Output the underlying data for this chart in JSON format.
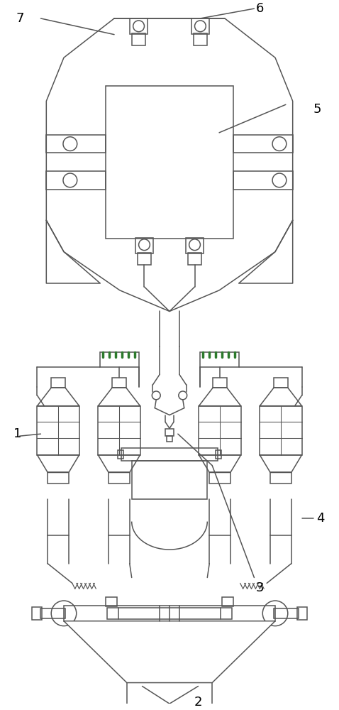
{
  "background_color": "#ffffff",
  "line_color": "#555555",
  "line_width": 1.1,
  "label_fontsize": 13,
  "figsize": [
    4.78,
    10.0
  ],
  "dpi": 100
}
